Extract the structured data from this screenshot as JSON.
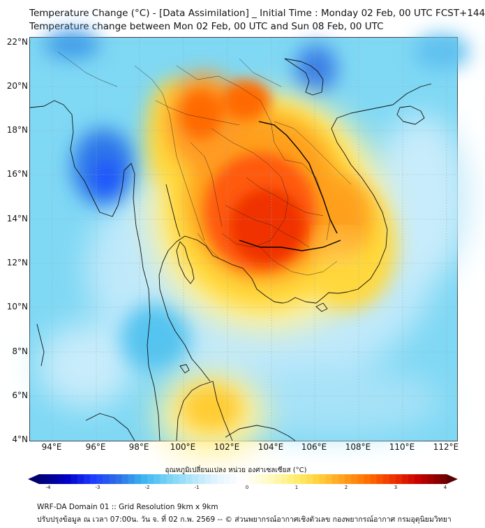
{
  "header": {
    "title_line1": "Temperature Change (°C) - [Data Assimilation] _ Initial Time : Monday 02 Feb, 00 UTC FCST+144",
    "title_line2": "Temperature change between Mon 02 Feb, 00 UTC and Sun 08 Feb, 00 UTC"
  },
  "map": {
    "lat_ticks": [
      "22°N",
      "20°N",
      "18°N",
      "16°N",
      "14°N",
      "12°N",
      "10°N",
      "8°N",
      "6°N",
      "4°N"
    ],
    "lon_ticks": [
      "94°E",
      "96°E",
      "98°E",
      "100°E",
      "102°E",
      "104°E",
      "106°E",
      "108°E",
      "110°E",
      "112°E"
    ],
    "lat_range": [
      4,
      22.3
    ],
    "lon_range": [
      93,
      112.5
    ]
  },
  "colorbar": {
    "title": "อุณหภูมิเปลี่ยนแปลง หน่วย องศาเซลเซียส (°C)",
    "ticks": [
      "-4",
      "-3",
      "-2",
      "-1",
      "0",
      "1",
      "2",
      "3",
      "4"
    ],
    "range": [
      -4,
      4
    ],
    "colors": [
      "#00007a",
      "#0000c8",
      "#1e3cff",
      "#2d6ee6",
      "#3cb4f0",
      "#78d2f5",
      "#b4e6fa",
      "#e6f5ff",
      "#ffffff",
      "#fffac8",
      "#fff078",
      "#ffd23c",
      "#ffa01e",
      "#ff6e00",
      "#f03200",
      "#c80000",
      "#780000"
    ]
  },
  "footer": {
    "line1": "WRF-DA Domain 01 :: Grid Resolution 9km x 9km",
    "line2": "ปรับปรุงข้อมูล ณ เวลา 07:00น. วัน จ. ที่ 02 ก.พ. 2569 -- © ส่วนพยากรณ์อากาศเชิงตัวเลข กองพยากรณ์อากาศ กรมอุตุนิยมวิทยา"
  }
}
